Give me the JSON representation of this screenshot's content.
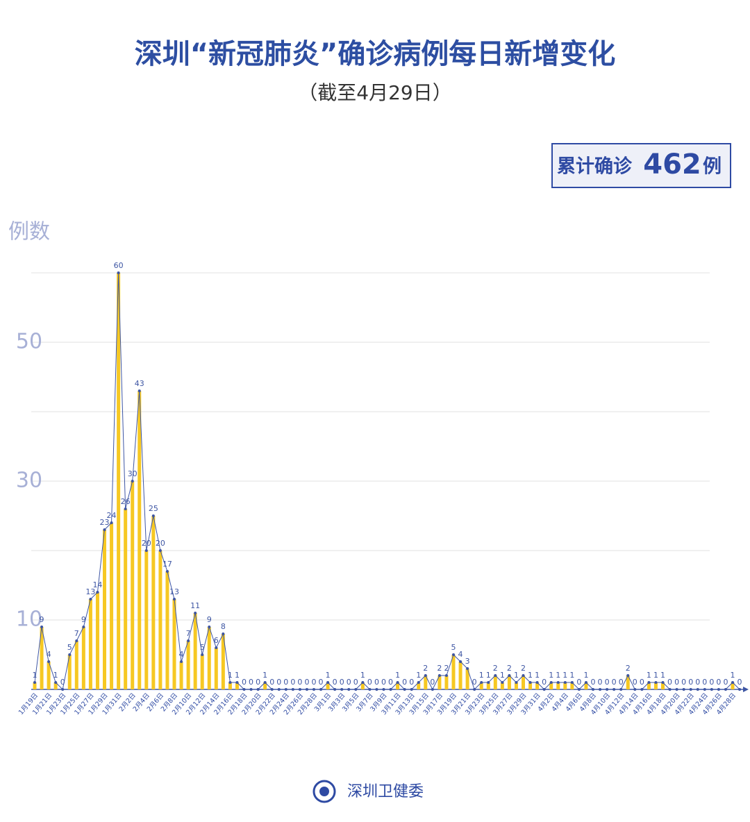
{
  "chart_data": {
    "type": "line",
    "title": "深圳“新冠肺炎”确诊病例每日新增变化",
    "subtitle": "（截至4月29日）",
    "total_label": "累计确诊",
    "total": 462,
    "total_unit": "例",
    "y_label": "例数",
    "source": "深圳卫健委",
    "line_color": "#3d55a3",
    "bar_color": "#f6c823",
    "drop_bars": true,
    "data_labels": true,
    "ylim": [
      0,
      60
    ],
    "yticks": [
      10,
      30,
      50
    ],
    "ygrid": [
      10,
      20,
      30,
      40,
      50,
      60
    ],
    "grid": true,
    "categories": [
      "1月19日",
      null,
      "1月21日",
      null,
      "1月23日",
      null,
      "1月25日",
      null,
      "1月27日",
      null,
      "1月29日",
      null,
      "1月31日",
      null,
      "2月2日",
      null,
      "2月4日",
      null,
      "2月6日",
      null,
      "2月8日",
      null,
      "2月10日",
      null,
      "2月12日",
      null,
      "2月14日",
      null,
      "2月16日",
      null,
      "2月18日",
      null,
      "2月20日",
      null,
      "2月22日",
      null,
      "2月24日",
      null,
      "2月26日",
      null,
      "2月28日",
      null,
      "3月1日",
      null,
      "3月3日",
      null,
      "3月5日",
      null,
      "3月7日",
      null,
      "3月9日",
      null,
      "3月11日",
      null,
      "3月13日",
      null,
      "3月15日",
      null,
      "3月17日",
      null,
      "3月19日",
      null,
      "3月21日",
      null,
      "3月23日",
      null,
      "3月25日",
      null,
      "3月27日",
      null,
      "3月29日",
      null,
      "3月31日",
      null,
      "4月2日",
      null,
      "4月4日",
      null,
      "4月6日",
      null,
      "4月8日",
      null,
      "4月10日",
      null,
      "4月12日",
      null,
      "4月14日",
      null,
      "4月16日",
      null,
      "4月18日",
      null,
      "4月20日",
      null,
      "4月22日",
      null,
      "4月24日",
      null,
      "4月26日",
      null,
      "4月28日",
      null
    ],
    "values": [
      1,
      9,
      4,
      1,
      0,
      5,
      7,
      9,
      13,
      14,
      23,
      24,
      60,
      26,
      30,
      43,
      20,
      25,
      20,
      17,
      13,
      4,
      7,
      11,
      5,
      9,
      6,
      8,
      1,
      1,
      0,
      0,
      0,
      1,
      0,
      0,
      0,
      0,
      0,
      0,
      0,
      0,
      1,
      0,
      0,
      0,
      0,
      1,
      0,
      0,
      0,
      0,
      1,
      0,
      0,
      1,
      2,
      0,
      2,
      2,
      5,
      4,
      3,
      0,
      1,
      1,
      2,
      1,
      2,
      1,
      2,
      1,
      1,
      0,
      1,
      1,
      1,
      1,
      0,
      1,
      0,
      0,
      0,
      0,
      0,
      2,
      0,
      0,
      1,
      1,
      1,
      0,
      0,
      0,
      0,
      0,
      0,
      0,
      0,
      0,
      1,
      0
    ]
  }
}
